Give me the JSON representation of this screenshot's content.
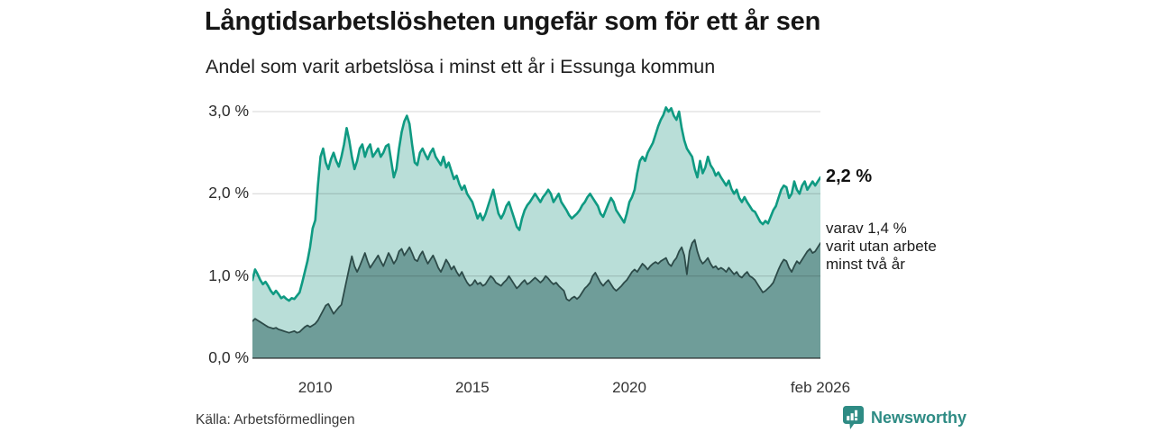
{
  "header": {
    "title": "Långtidsarbetslösheten ungefär som för ett år sen",
    "subtitle": "Andel som varit arbetslösa i minst ett år i Essunga kommun"
  },
  "chart_data": {
    "type": "area",
    "unit": "%",
    "x_start": "2008-01",
    "x_end": "2026-02",
    "frequency": "monthly",
    "ylim": [
      0,
      3.18
    ],
    "grid": "horizontal",
    "yticks": [
      {
        "value": 0,
        "label": "0,0 %"
      },
      {
        "value": 1,
        "label": "1,0 %"
      },
      {
        "value": 2,
        "label": "2,0 %"
      },
      {
        "value": 3,
        "label": "3,0 %"
      }
    ],
    "xticks": [
      {
        "label": "2010",
        "year": 2010.0
      },
      {
        "label": "2015",
        "year": 2015.0
      },
      {
        "label": "2020",
        "year": 2020.0
      },
      {
        "label": "feb 2026",
        "year": 2026.083
      }
    ],
    "series": [
      {
        "name": "arbetslösa minst ett år",
        "line_color": "#0f9a82",
        "fill_color": "#b9ded8",
        "latest_value": 2.2,
        "values": [
          0.95,
          1.08,
          1.02,
          0.95,
          0.9,
          0.93,
          0.88,
          0.82,
          0.78,
          0.82,
          0.78,
          0.73,
          0.75,
          0.72,
          0.7,
          0.73,
          0.72,
          0.76,
          0.8,
          0.92,
          1.05,
          1.18,
          1.35,
          1.58,
          1.68,
          2.1,
          2.45,
          2.55,
          2.38,
          2.3,
          2.42,
          2.5,
          2.4,
          2.33,
          2.45,
          2.6,
          2.8,
          2.65,
          2.45,
          2.3,
          2.4,
          2.55,
          2.6,
          2.45,
          2.55,
          2.6,
          2.45,
          2.5,
          2.55,
          2.45,
          2.5,
          2.58,
          2.6,
          2.4,
          2.2,
          2.3,
          2.55,
          2.75,
          2.88,
          2.95,
          2.85,
          2.6,
          2.38,
          2.35,
          2.5,
          2.55,
          2.48,
          2.42,
          2.5,
          2.55,
          2.45,
          2.4,
          2.35,
          2.45,
          2.32,
          2.38,
          2.28,
          2.18,
          2.22,
          2.12,
          2.05,
          2.1,
          2.0,
          1.95,
          1.9,
          1.8,
          1.7,
          1.76,
          1.68,
          1.75,
          1.85,
          1.95,
          2.05,
          1.9,
          1.76,
          1.7,
          1.76,
          1.85,
          1.9,
          1.8,
          1.7,
          1.6,
          1.56,
          1.7,
          1.8,
          1.86,
          1.9,
          1.95,
          2.0,
          1.95,
          1.9,
          1.96,
          2.0,
          2.05,
          2.0,
          1.9,
          1.95,
          2.0,
          1.9,
          1.85,
          1.8,
          1.74,
          1.7,
          1.73,
          1.76,
          1.8,
          1.86,
          1.9,
          1.96,
          2.0,
          1.95,
          1.9,
          1.85,
          1.76,
          1.72,
          1.8,
          1.88,
          1.95,
          1.9,
          1.8,
          1.75,
          1.7,
          1.65,
          1.76,
          1.9,
          1.96,
          2.05,
          2.25,
          2.4,
          2.45,
          2.4,
          2.5,
          2.56,
          2.62,
          2.72,
          2.82,
          2.9,
          2.96,
          3.05,
          3.0,
          3.04,
          2.95,
          2.9,
          3.0,
          2.8,
          2.65,
          2.55,
          2.5,
          2.45,
          2.3,
          2.2,
          2.4,
          2.25,
          2.32,
          2.45,
          2.35,
          2.3,
          2.22,
          2.26,
          2.2,
          2.15,
          2.1,
          2.16,
          2.06,
          2.0,
          2.05,
          1.95,
          1.9,
          1.96,
          1.9,
          1.85,
          1.8,
          1.78,
          1.72,
          1.66,
          1.63,
          1.67,
          1.64,
          1.72,
          1.8,
          1.85,
          1.95,
          2.05,
          2.1,
          2.08,
          1.95,
          2.0,
          2.15,
          2.05,
          2.0,
          2.1,
          2.15,
          2.05,
          2.1,
          2.15,
          2.1,
          2.15,
          2.2
        ]
      },
      {
        "name": "arbetslösa minst två år",
        "line_color": "#2d4b49",
        "fill_color": "#6f9d99",
        "latest_value": 1.4,
        "values": [
          0.45,
          0.48,
          0.46,
          0.44,
          0.42,
          0.4,
          0.38,
          0.37,
          0.36,
          0.37,
          0.35,
          0.34,
          0.33,
          0.32,
          0.31,
          0.32,
          0.33,
          0.31,
          0.32,
          0.35,
          0.38,
          0.4,
          0.38,
          0.4,
          0.42,
          0.46,
          0.52,
          0.58,
          0.64,
          0.66,
          0.6,
          0.54,
          0.58,
          0.62,
          0.65,
          0.8,
          0.95,
          1.1,
          1.24,
          1.12,
          1.05,
          1.12,
          1.2,
          1.28,
          1.18,
          1.1,
          1.15,
          1.2,
          1.25,
          1.18,
          1.12,
          1.2,
          1.28,
          1.22,
          1.15,
          1.2,
          1.3,
          1.33,
          1.25,
          1.3,
          1.35,
          1.28,
          1.2,
          1.18,
          1.25,
          1.3,
          1.22,
          1.15,
          1.2,
          1.25,
          1.18,
          1.1,
          1.05,
          1.12,
          1.2,
          1.15,
          1.08,
          1.12,
          1.05,
          1.0,
          1.05,
          0.98,
          0.92,
          0.88,
          0.9,
          0.95,
          0.9,
          0.92,
          0.88,
          0.9,
          0.95,
          1.0,
          0.97,
          0.92,
          0.9,
          0.88,
          0.92,
          0.95,
          1.0,
          0.95,
          0.9,
          0.85,
          0.88,
          0.92,
          0.95,
          0.9,
          0.92,
          0.95,
          0.98,
          0.95,
          0.92,
          0.95,
          1.0,
          0.97,
          0.93,
          0.9,
          0.92,
          0.88,
          0.85,
          0.82,
          0.72,
          0.7,
          0.73,
          0.75,
          0.72,
          0.75,
          0.8,
          0.85,
          0.88,
          0.92,
          1.0,
          1.04,
          0.98,
          0.92,
          0.88,
          0.92,
          0.95,
          0.9,
          0.85,
          0.82,
          0.85,
          0.88,
          0.92,
          0.95,
          1.0,
          1.05,
          1.08,
          1.05,
          1.1,
          1.15,
          1.12,
          1.08,
          1.12,
          1.15,
          1.17,
          1.15,
          1.18,
          1.2,
          1.22,
          1.15,
          1.12,
          1.18,
          1.22,
          1.3,
          1.35,
          1.25,
          1.02,
          1.3,
          1.4,
          1.44,
          1.3,
          1.2,
          1.15,
          1.18,
          1.22,
          1.15,
          1.1,
          1.12,
          1.08,
          1.1,
          1.08,
          1.05,
          1.1,
          1.06,
          1.02,
          1.05,
          1.0,
          0.98,
          1.02,
          1.05,
          1.0,
          0.98,
          0.95,
          0.9,
          0.85,
          0.8,
          0.82,
          0.85,
          0.88,
          0.92,
          1.0,
          1.08,
          1.15,
          1.2,
          1.18,
          1.1,
          1.05,
          1.12,
          1.18,
          1.15,
          1.2,
          1.25,
          1.3,
          1.33,
          1.28,
          1.3,
          1.35,
          1.4
        ]
      }
    ],
    "annotations": {
      "latest_total": "2,2 %",
      "secondary_line1": "varav 1,4 %",
      "secondary_line2": "varit utan arbete",
      "secondary_line3": "minst två år"
    }
  },
  "footer": {
    "source": "Källa: Arbetsförmedlingen",
    "brand": "Newsworthy"
  },
  "colors": {
    "background": "#ffffff",
    "gridline": "#d9d9d9",
    "brand_teal": "#2e8b84"
  }
}
